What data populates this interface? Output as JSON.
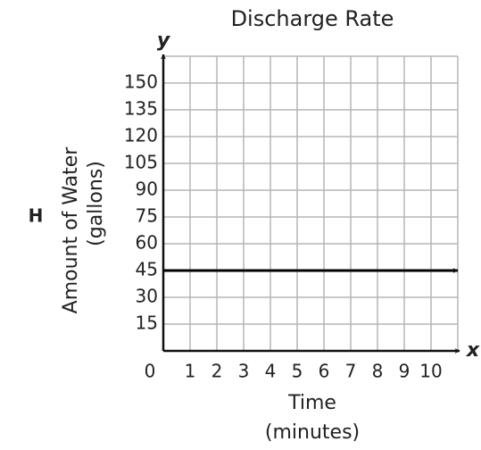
{
  "label": "H",
  "chart_data": {
    "type": "line",
    "title": "Discharge Rate",
    "x_axis_label": [
      "Time",
      "(minutes)"
    ],
    "y_axis_label": [
      "Amount of Water",
      "(gallons)"
    ],
    "x_axis_letter": "x",
    "y_axis_letter": "y",
    "x": [
      0,
      11
    ],
    "values": [
      45,
      45
    ],
    "color": "#000000",
    "xlim": [
      0,
      11
    ],
    "ylim": [
      0,
      165
    ],
    "xticks": [
      0,
      1,
      2,
      3,
      4,
      5,
      6,
      7,
      8,
      9,
      10
    ],
    "yticks": [
      15,
      30,
      45,
      60,
      75,
      90,
      105,
      120,
      135,
      150
    ],
    "grid": true
  }
}
